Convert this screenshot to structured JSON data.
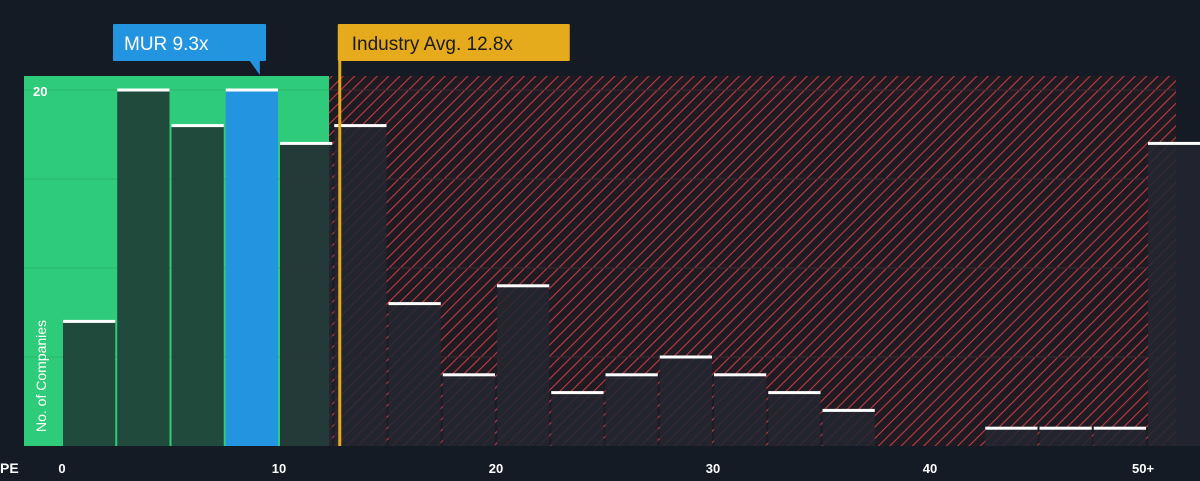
{
  "chart_data": {
    "type": "bar",
    "x_axis_label": "PE",
    "y_axis_label": "No. of Companies",
    "x_ticks": [
      "0",
      "10",
      "20",
      "30",
      "40",
      "50+"
    ],
    "y_ticks": [
      "20"
    ],
    "ylim": [
      0,
      20
    ],
    "bin_width": 2.5,
    "bin_starts": [
      0,
      2.5,
      5,
      7.5,
      10,
      12.5,
      15,
      17.5,
      20,
      22.5,
      25,
      27.5,
      30,
      32.5,
      35,
      37.5,
      40,
      42.5,
      45,
      47.5,
      50
    ],
    "values": [
      7,
      20,
      18,
      20,
      17,
      18,
      8,
      4,
      9,
      3,
      4,
      5,
      4,
      3,
      2,
      0,
      0,
      1,
      1,
      1,
      17
    ],
    "highlight_bin_index": 3,
    "company": {
      "label": "MUR 9.3x",
      "value": 9.3
    },
    "industry_avg": {
      "label": "Industry Avg. 12.8x",
      "value": 12.8
    },
    "gridlines": true,
    "colors": {
      "background": "#151b24",
      "undervalued_zone": "#2ecc7a",
      "undervalued_bar": "#1f4a3c",
      "highlight_bar": "#2394e0",
      "overvalued_hatch": "#c23a44",
      "overvalued_bar": "#232630",
      "avg_marker": "#e5ab1c",
      "bar_cap": "#ffffff"
    }
  }
}
